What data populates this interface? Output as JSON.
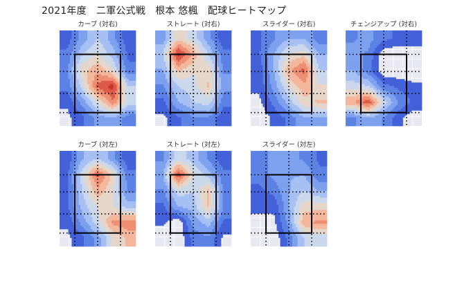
{
  "title": "2021年度　二軍公式戦　根本 悠楓　配球ヒートマップ",
  "colors": {
    "background": "#E8E8F0",
    "grid": "#FFFFFF",
    "levels": [
      "#4361D8",
      "#5B82E4",
      "#7DA1EE",
      "#A6C0F3",
      "#CBD8EC",
      "#E6D6C9",
      "#F4B79C",
      "#EE8E72",
      "#DE5A48",
      "#C9302E"
    ],
    "zone": "#000000",
    "dots": "#000000"
  },
  "chart_data": [
    {
      "type": "heatmap",
      "title": "カーブ (対右)",
      "grid_on": true,
      "density": [
        [
          0.12,
          0.3,
          0.45,
          0.3,
          0.1
        ],
        [
          0.2,
          0.45,
          0.55,
          0.4,
          0.15
        ],
        [
          0.25,
          0.6,
          0.7,
          0.55,
          0.2
        ],
        [
          0.2,
          0.5,
          0.85,
          0.95,
          0.45
        ],
        [
          0.1,
          0.3,
          0.55,
          0.8,
          0.5
        ],
        [
          0.05,
          0.15,
          0.3,
          0.35,
          0.2
        ]
      ]
    },
    {
      "type": "heatmap",
      "title": "ストレート (対右)",
      "grid_on": true,
      "density": [
        [
          0.3,
          0.6,
          0.5,
          0.3,
          0.1
        ],
        [
          0.45,
          0.95,
          0.7,
          0.45,
          0.2
        ],
        [
          0.35,
          0.65,
          0.55,
          0.6,
          0.25
        ],
        [
          0.25,
          0.45,
          0.5,
          0.65,
          0.3
        ],
        [
          0.15,
          0.35,
          0.45,
          0.5,
          0.2
        ],
        [
          0.05,
          0.15,
          0.25,
          0.25,
          0.1
        ]
      ]
    },
    {
      "type": "heatmap",
      "title": "スライダー (対右)",
      "grid_on": true,
      "density": [
        [
          0.15,
          0.25,
          0.35,
          0.35,
          0.2
        ],
        [
          0.15,
          0.35,
          0.55,
          0.6,
          0.35
        ],
        [
          0.1,
          0.35,
          0.7,
          0.85,
          0.45
        ],
        [
          0.1,
          0.3,
          0.55,
          0.7,
          0.55
        ],
        [
          0.05,
          0.2,
          0.4,
          0.6,
          0.65
        ],
        [
          0.0,
          0.1,
          0.2,
          0.35,
          0.35
        ]
      ]
    },
    {
      "type": "heatmap",
      "title": "チェンジアップ (対右)",
      "grid_on": true,
      "density": [
        [
          0.25,
          0.3,
          0.2,
          0.15,
          0.15
        ],
        [
          0.3,
          0.25,
          0.0,
          0.0,
          0.0
        ],
        [
          0.35,
          0.2,
          0.0,
          0.0,
          0.0
        ],
        [
          0.5,
          0.45,
          0.2,
          0.15,
          0.1
        ],
        [
          0.7,
          0.9,
          0.5,
          0.25,
          0.15
        ],
        [
          0.25,
          0.35,
          0.25,
          0.1,
          0.0
        ]
      ]
    },
    {
      "type": "heatmap",
      "title": "カーブ (対左)",
      "grid_on": true,
      "density": [
        [
          0.1,
          0.35,
          0.45,
          0.3,
          0.1
        ],
        [
          0.15,
          0.5,
          0.85,
          0.6,
          0.2
        ],
        [
          0.15,
          0.45,
          0.7,
          0.55,
          0.25
        ],
        [
          0.15,
          0.4,
          0.55,
          0.55,
          0.4
        ],
        [
          0.1,
          0.3,
          0.5,
          0.75,
          0.8
        ],
        [
          0.05,
          0.15,
          0.3,
          0.55,
          0.65
        ]
      ]
    },
    {
      "type": "heatmap",
      "title": "ストレート (対左)",
      "grid_on": true,
      "density": [
        [
          0.25,
          0.5,
          0.4,
          0.25,
          0.1
        ],
        [
          0.35,
          0.9,
          0.55,
          0.4,
          0.2
        ],
        [
          0.25,
          0.5,
          0.45,
          0.65,
          0.25
        ],
        [
          0.15,
          0.35,
          0.4,
          0.65,
          0.25
        ],
        [
          0.1,
          0.0,
          0.3,
          0.4,
          0.15
        ],
        [
          0.0,
          0.0,
          0.2,
          0.25,
          0.05
        ]
      ]
    },
    {
      "type": "heatmap",
      "title": "スライダー (対左)",
      "grid_on": true,
      "density": [
        [
          0.2,
          0.3,
          0.3,
          0.25,
          0.15
        ],
        [
          0.2,
          0.3,
          0.35,
          0.35,
          0.2
        ],
        [
          0.15,
          0.2,
          0.35,
          0.45,
          0.35
        ],
        [
          0.1,
          0.1,
          0.35,
          0.6,
          0.6
        ],
        [
          0.05,
          0.05,
          0.3,
          0.7,
          0.75
        ],
        [
          0.0,
          0.0,
          0.2,
          0.45,
          0.45
        ]
      ]
    }
  ]
}
